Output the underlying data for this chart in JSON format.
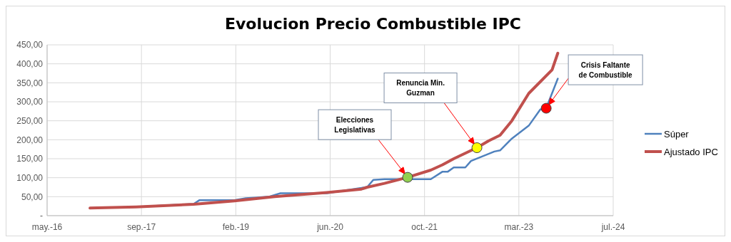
{
  "chart_data": {
    "type": "line",
    "title": "Evolucion Precio Combustible IPC",
    "xlim": [
      "2016-05-20",
      "2024-07-19"
    ],
    "xticks": [
      {
        "value": "2016-05-20",
        "label": "may.-16"
      },
      {
        "value": "2017-09-29",
        "label": "sep.-17"
      },
      {
        "value": "2019-02-08",
        "label": "feb.-19"
      },
      {
        "value": "2020-06-19",
        "label": "jun.-20"
      },
      {
        "value": "2021-10-29",
        "label": "oct.-21"
      },
      {
        "value": "2023-03-10",
        "label": "mar.-23"
      },
      {
        "value": "2024-07-19",
        "label": "jul.-24"
      }
    ],
    "ylim": [
      0,
      450
    ],
    "yticks": [
      {
        "value": 0,
        "label": "-"
      },
      {
        "value": 50,
        "label": "50,00"
      },
      {
        "value": 100,
        "label": "100,00"
      },
      {
        "value": 150,
        "label": "150,00"
      },
      {
        "value": 200,
        "label": "200,00"
      },
      {
        "value": 250,
        "label": "250,00"
      },
      {
        "value": 300,
        "label": "300,00"
      },
      {
        "value": 350,
        "label": "350,00"
      },
      {
        "value": 400,
        "label": "400,00"
      },
      {
        "value": 450,
        "label": "450,00"
      }
    ],
    "series": [
      {
        "name": "Súper",
        "color": "#4f81bd",
        "x": [
          "2017-01",
          "2017-09",
          "2018-07",
          "2018-08",
          "2019-02",
          "2019-04",
          "2019-06",
          "2019-08",
          "2019-10",
          "2020-06",
          "2020-12",
          "2021-01",
          "2021-02",
          "2021-04",
          "2021-12",
          "2022-02",
          "2022-03",
          "2022-04",
          "2022-06",
          "2022-07",
          "2022-11",
          "2022-12",
          "2023-02",
          "2023-05",
          "2023-07",
          "2023-08",
          "2023-10"
        ],
        "values": [
          20,
          23,
          31,
          41,
          41,
          46,
          48,
          50,
          59,
          59,
          73,
          76,
          94,
          96,
          96,
          116,
          116,
          127,
          127,
          144,
          169,
          172,
          203,
          237,
          280,
          283,
          361
        ]
      },
      {
        "name": "Ajustado IPC",
        "color": "#c0504d",
        "x": [
          "2017-01",
          "2017-09",
          "2018-07",
          "2019-02",
          "2019-09",
          "2020-06",
          "2020-12",
          "2021-01",
          "2021-04",
          "2021-08",
          "2021-12",
          "2022-02",
          "2022-04",
          "2022-08",
          "2022-10",
          "2022-12",
          "2023-02",
          "2023-05",
          "2023-09",
          "2023-10"
        ],
        "values": [
          20,
          23,
          30,
          39,
          50,
          61,
          70,
          75,
          85,
          101,
          120,
          134,
          150,
          179,
          197,
          212,
          250,
          322,
          384,
          428
        ]
      }
    ],
    "annotations": [
      "Elecciones Legislativas",
      "Renuncia Min. Guzman",
      "Crisis Faltante de Combustible"
    ],
    "grid": true,
    "legend": "right"
  }
}
